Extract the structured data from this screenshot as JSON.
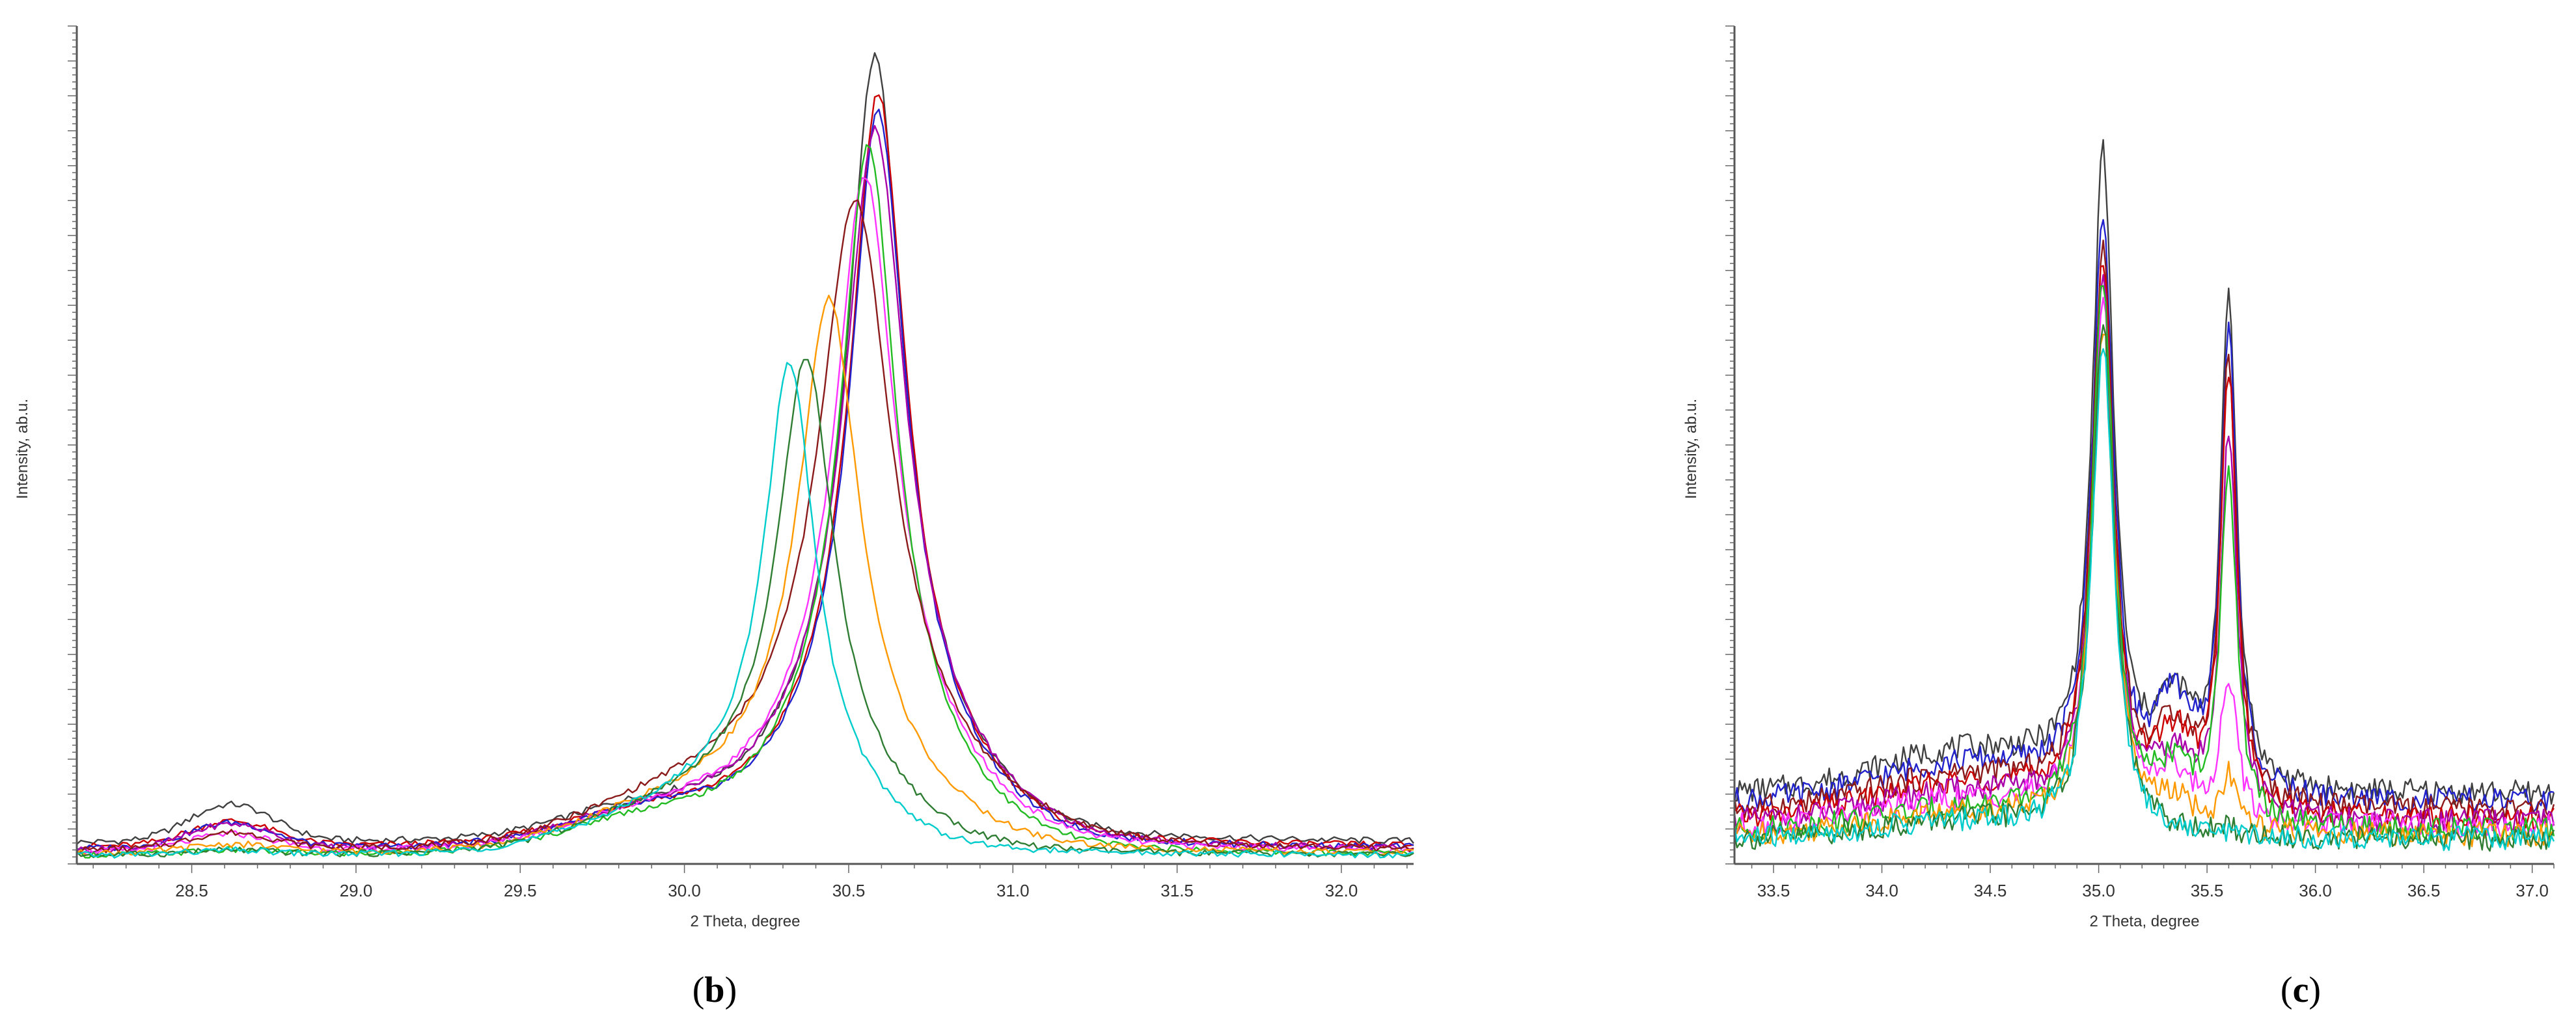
{
  "panels": [
    {
      "letter_open": "(",
      "letter": "b",
      "letter_close": ")"
    },
    {
      "letter_open": "(",
      "letter": "c",
      "letter_close": ")"
    }
  ],
  "chart_data": [
    {
      "type": "line",
      "title": "",
      "xlabel": "2 Theta, degree",
      "ylabel": "Intensity, ab.u.",
      "xlim": [
        28.15,
        32.22
      ],
      "ylim": [
        0,
        1.0
      ],
      "xticks": [
        {
          "v": 28.5,
          "label": "28.5"
        },
        {
          "v": 29.0,
          "label": "29.0"
        },
        {
          "v": 29.5,
          "label": "29.5"
        },
        {
          "v": 30.0,
          "label": "30.0"
        },
        {
          "v": 30.5,
          "label": "30.5"
        },
        {
          "v": 31.0,
          "label": "31.0"
        },
        {
          "v": 31.5,
          "label": "31.5"
        },
        {
          "v": 32.0,
          "label": "32.0"
        }
      ],
      "y_tick_labels": "none",
      "grid": false,
      "legend": "none",
      "series": [
        {
          "color": "#404040",
          "b": 0.025,
          "hump": 0.045,
          "c": 30.58,
          "a": 0.955,
          "w": 0.1
        },
        {
          "color": "#cc0000",
          "b": 0.02,
          "hump": 0.03,
          "c": 30.59,
          "a": 0.915,
          "w": 0.1
        },
        {
          "color": "#2222cc",
          "b": 0.018,
          "hump": 0.03,
          "c": 30.59,
          "a": 0.895,
          "w": 0.1
        },
        {
          "color": "#aa00aa",
          "b": 0.016,
          "hump": 0.03,
          "c": 30.58,
          "a": 0.875,
          "w": 0.11
        },
        {
          "color": "#ff33ff",
          "b": 0.014,
          "hump": 0.02,
          "c": 30.55,
          "a": 0.82,
          "w": 0.11
        },
        {
          "color": "#22bb22",
          "b": 0.01,
          "hump": 0.005,
          "c": 30.56,
          "a": 0.86,
          "w": 0.1
        },
        {
          "color": "#8b1a1a",
          "b": 0.015,
          "hump": 0.02,
          "c": 30.52,
          "a": 0.79,
          "w": 0.13
        },
        {
          "color": "#ff9900",
          "b": 0.012,
          "hump": 0.01,
          "c": 30.44,
          "a": 0.67,
          "w": 0.11
        },
        {
          "color": "#2e7d32",
          "b": 0.01,
          "hump": 0.005,
          "c": 30.37,
          "a": 0.6,
          "w": 0.1
        },
        {
          "color": "#00cccc",
          "b": 0.01,
          "hump": 0.005,
          "c": 30.32,
          "a": 0.59,
          "w": 0.09
        }
      ]
    },
    {
      "type": "line",
      "title": "",
      "xlabel": "2 Theta, degree",
      "ylabel": "Intensity, ab.u.",
      "xlim": [
        33.32,
        37.1
      ],
      "ylim": [
        0,
        1.0
      ],
      "xticks": [
        {
          "v": 33.5,
          "label": "33.5"
        },
        {
          "v": 34.0,
          "label": "34.0"
        },
        {
          "v": 34.5,
          "label": "34.5"
        },
        {
          "v": 35.0,
          "label": "35.0"
        },
        {
          "v": 35.5,
          "label": "35.5"
        },
        {
          "v": 36.0,
          "label": "36.0"
        },
        {
          "v": 36.5,
          "label": "36.5"
        },
        {
          "v": 37.0,
          "label": "37.0"
        }
      ],
      "y_tick_labels": "none",
      "grid": false,
      "legend": "none",
      "series": [
        {
          "color": "#404040",
          "b": 0.085,
          "p1": 0.76,
          "p2": 0.6,
          "s": 0.09,
          "r": 0.05
        },
        {
          "color": "#2222cc",
          "b": 0.075,
          "p1": 0.7,
          "p2": 0.57,
          "s": 0.1,
          "r": 0.045
        },
        {
          "color": "#8b1a1a",
          "b": 0.065,
          "p1": 0.67,
          "p2": 0.55,
          "s": 0.08,
          "r": 0.04
        },
        {
          "color": "#cc0000",
          "b": 0.055,
          "p1": 0.66,
          "p2": 0.54,
          "s": 0.08,
          "r": 0.04
        },
        {
          "color": "#aa00aa",
          "b": 0.05,
          "p1": 0.64,
          "p2": 0.47,
          "s": 0.06,
          "r": 0.035
        },
        {
          "color": "#ff33ff",
          "b": 0.045,
          "p1": 0.63,
          "p2": 0.18,
          "s": 0.05,
          "r": 0.03
        },
        {
          "color": "#22bb22",
          "b": 0.04,
          "p1": 0.66,
          "p2": 0.44,
          "s": 0.06,
          "r": 0.025
        },
        {
          "color": "#ff9900",
          "b": 0.035,
          "p1": 0.61,
          "p2": 0.07,
          "s": 0.03,
          "r": 0.025
        },
        {
          "color": "#2e7d32",
          "b": 0.03,
          "p1": 0.62,
          "p2": 0.01,
          "s": 0.0,
          "r": 0.02
        },
        {
          "color": "#00cccc",
          "b": 0.03,
          "p1": 0.6,
          "p2": 0.005,
          "s": 0.0,
          "r": 0.02
        }
      ]
    }
  ]
}
